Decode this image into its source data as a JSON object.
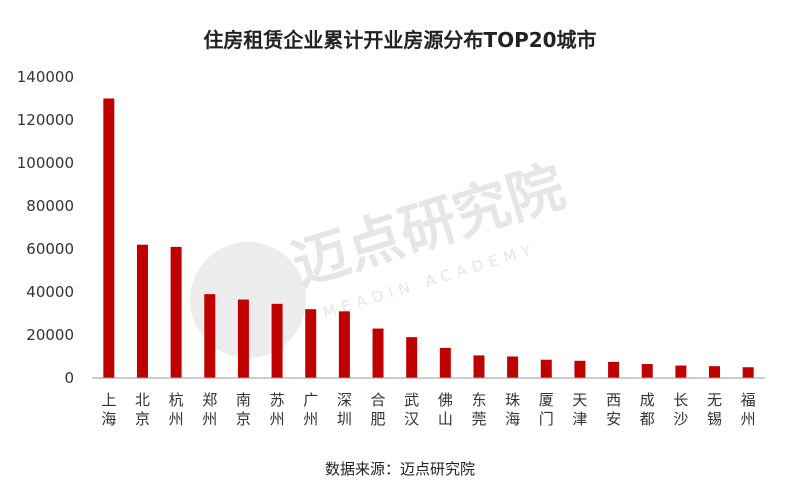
{
  "source_label": "数据来源：迈点研究院",
  "watermark": {
    "cn": "迈点研究院",
    "en": "MEADIN ACADEMY"
  },
  "colors": {
    "bar": "#c00000",
    "axis": "#999999",
    "text": "#333333",
    "watermark": "#e6e6e6"
  },
  "chart_data": {
    "type": "bar",
    "title": "住房租赁企业累计开业房源分布TOP20城市",
    "xlabel": "",
    "ylabel": "",
    "ylim": [
      0,
      140000
    ],
    "yticks": [
      0,
      20000,
      40000,
      60000,
      80000,
      100000,
      120000,
      140000
    ],
    "grid": false,
    "legend": "none",
    "categories": [
      "上海",
      "北京",
      "杭州",
      "郑州",
      "南京",
      "苏州",
      "广州",
      "深圳",
      "合肥",
      "武汉",
      "佛山",
      "东莞",
      "珠海",
      "厦门",
      "天津",
      "西安",
      "成都",
      "长沙",
      "无锡",
      "福州"
    ],
    "values": [
      130000,
      62000,
      61000,
      39000,
      36500,
      34500,
      32000,
      31000,
      23000,
      19000,
      14000,
      10500,
      10000,
      8500,
      8000,
      7500,
      6500,
      5800,
      5500,
      5000
    ]
  }
}
